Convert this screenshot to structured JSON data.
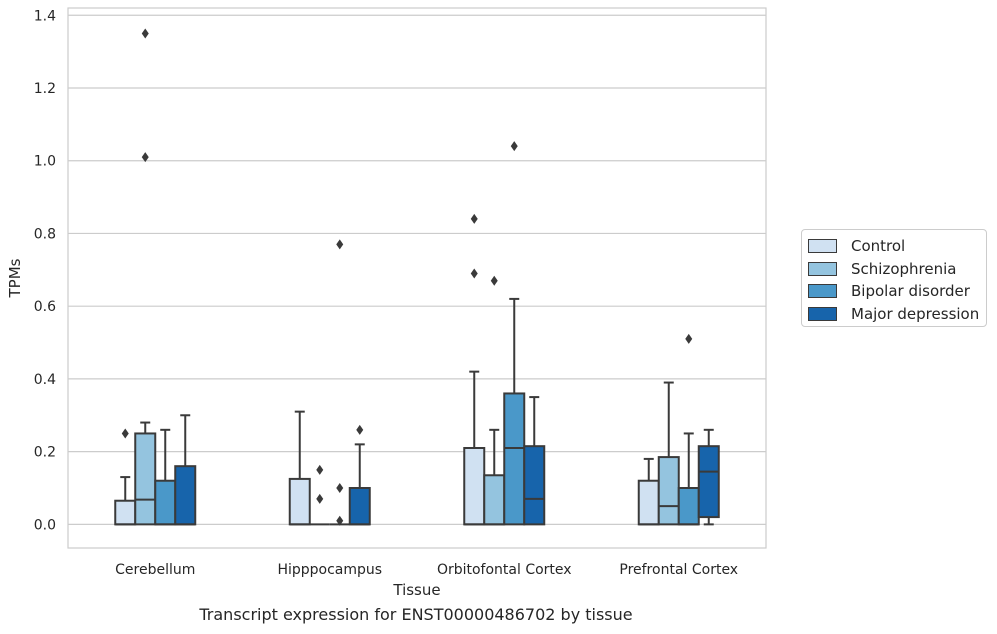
{
  "caption": "Transcript expression for ENST00000486702 by tissue",
  "chart_data": {
    "type": "boxplot",
    "xlabel": "Tissue",
    "ylabel": "TPMs",
    "ylim": [
      -0.065,
      1.42
    ],
    "yticks": [
      "0.0",
      "0.2",
      "0.4",
      "0.6",
      "0.8",
      "1.0",
      "1.2",
      "1.4"
    ],
    "grid": true,
    "legend_position": "right",
    "categories": [
      "Cerebellum",
      "Hipppocampus",
      "Orbitofontal Cortex",
      "Prefrontal Cortex"
    ],
    "series": [
      {
        "name": "Control",
        "color": "#d0e1f2",
        "boxes": [
          {
            "q1": 0.0,
            "median": 0.0,
            "q3": 0.065,
            "whisker_low": 0.0,
            "whisker_high": 0.13,
            "outliers": [
              0.25
            ]
          },
          {
            "q1": 0.0,
            "median": 0.0,
            "q3": 0.125,
            "whisker_low": 0.0,
            "whisker_high": 0.31,
            "outliers": []
          },
          {
            "q1": 0.0,
            "median": 0.0,
            "q3": 0.21,
            "whisker_low": 0.0,
            "whisker_high": 0.42,
            "outliers": [
              0.69,
              0.84
            ]
          },
          {
            "q1": 0.0,
            "median": 0.0,
            "q3": 0.12,
            "whisker_low": 0.0,
            "whisker_high": 0.18,
            "outliers": []
          }
        ]
      },
      {
        "name": "Schizophrenia",
        "color": "#94c4df",
        "boxes": [
          {
            "q1": 0.0,
            "median": 0.068,
            "q3": 0.25,
            "whisker_low": 0.0,
            "whisker_high": 0.28,
            "outliers": [
              1.01,
              1.35
            ]
          },
          {
            "q1": 0.0,
            "median": 0.0,
            "q3": 0.0,
            "whisker_low": 0.0,
            "whisker_high": 0.0,
            "outliers": [
              0.07,
              0.15
            ]
          },
          {
            "q1": 0.0,
            "median": 0.0,
            "q3": 0.135,
            "whisker_low": 0.0,
            "whisker_high": 0.26,
            "outliers": [
              0.67
            ]
          },
          {
            "q1": 0.0,
            "median": 0.05,
            "q3": 0.185,
            "whisker_low": 0.0,
            "whisker_high": 0.39,
            "outliers": []
          }
        ]
      },
      {
        "name": "Bipolar disorder",
        "color": "#4a98c9",
        "boxes": [
          {
            "q1": 0.0,
            "median": 0.0,
            "q3": 0.12,
            "whisker_low": 0.0,
            "whisker_high": 0.26,
            "outliers": []
          },
          {
            "q1": 0.0,
            "median": 0.0,
            "q3": 0.0,
            "whisker_low": 0.0,
            "whisker_high": 0.0,
            "outliers": [
              0.01,
              0.1,
              0.77
            ]
          },
          {
            "q1": 0.0,
            "median": 0.21,
            "q3": 0.36,
            "whisker_low": 0.0,
            "whisker_high": 0.62,
            "outliers": [
              1.04
            ]
          },
          {
            "q1": 0.0,
            "median": 0.0,
            "q3": 0.1,
            "whisker_low": 0.0,
            "whisker_high": 0.25,
            "outliers": [
              0.51
            ]
          }
        ]
      },
      {
        "name": "Major depression",
        "color": "#1764ab",
        "boxes": [
          {
            "q1": 0.0,
            "median": 0.0,
            "q3": 0.16,
            "whisker_low": 0.0,
            "whisker_high": 0.3,
            "outliers": []
          },
          {
            "q1": 0.0,
            "median": 0.0,
            "q3": 0.1,
            "whisker_low": 0.0,
            "whisker_high": 0.22,
            "outliers": [
              0.26
            ]
          },
          {
            "q1": 0.0,
            "median": 0.07,
            "q3": 0.215,
            "whisker_low": 0.0,
            "whisker_high": 0.35,
            "outliers": []
          },
          {
            "q1": 0.02,
            "median": 0.145,
            "q3": 0.215,
            "whisker_low": 0.0,
            "whisker_high": 0.26,
            "outliers": []
          }
        ]
      }
    ]
  }
}
